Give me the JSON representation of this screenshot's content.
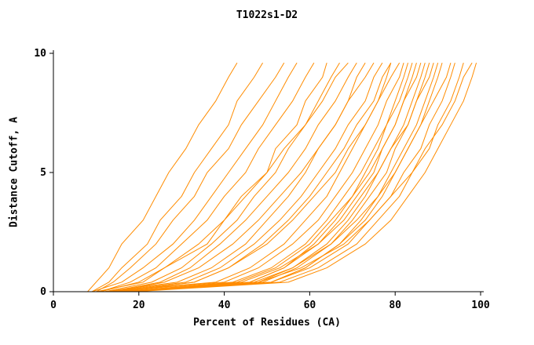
{
  "chart_data": {
    "type": "line",
    "title": "T1022s1-D2",
    "xlabel": "Percent of Residues (CA)",
    "ylabel": "Distance Cutoff, A",
    "xlim": [
      0,
      100
    ],
    "ylim": [
      0,
      10
    ],
    "x_ticks": [
      0,
      20,
      40,
      60,
      80,
      100
    ],
    "y_ticks": [
      0,
      5,
      10
    ],
    "grid": false,
    "legend": "none",
    "series_color": "#ff8c00",
    "axis_color": "#000000",
    "background_color": "#ffffff",
    "y_levels": [
      0,
      0.4,
      1,
      2,
      3,
      4,
      5,
      6,
      7,
      8,
      9,
      9.6
    ],
    "curves": [
      [
        8,
        10,
        13,
        16,
        21,
        24,
        27,
        31,
        34,
        38,
        41,
        43
      ],
      [
        9,
        13,
        16,
        22,
        25,
        30,
        33,
        37,
        41,
        43,
        47,
        49
      ],
      [
        10,
        14,
        18,
        24,
        28,
        33,
        36,
        41,
        44,
        48,
        52,
        54
      ],
      [
        9,
        16,
        21,
        28,
        33,
        37,
        41,
        45,
        49,
        52,
        55,
        57
      ],
      [
        11,
        18,
        24,
        30,
        36,
        40,
        45,
        48,
        52,
        56,
        59,
        61
      ],
      [
        10,
        21,
        26,
        36,
        40,
        44,
        50,
        52,
        57,
        59,
        63,
        64
      ],
      [
        12,
        23,
        30,
        37,
        43,
        47,
        52,
        55,
        59,
        62,
        65,
        67
      ],
      [
        11,
        20,
        26,
        34,
        40,
        45,
        50,
        54,
        59,
        63,
        66,
        69
      ],
      [
        13,
        25,
        32,
        39,
        45,
        50,
        55,
        59,
        62,
        66,
        69,
        71
      ],
      [
        12,
        29,
        37,
        45,
        50,
        55,
        59,
        62,
        66,
        69,
        71,
        73
      ],
      [
        14,
        26,
        34,
        42,
        48,
        53,
        58,
        62,
        66,
        69,
        73,
        75
      ],
      [
        13,
        31,
        39,
        47,
        53,
        58,
        62,
        66,
        69,
        73,
        75,
        77
      ],
      [
        15,
        33,
        41,
        49,
        55,
        60,
        64,
        68,
        71,
        75,
        77,
        79
      ],
      [
        12,
        38,
        46,
        54,
        59,
        64,
        67,
        70,
        73,
        76,
        78,
        79
      ],
      [
        14,
        33,
        41,
        50,
        56,
        61,
        66,
        69,
        73,
        76,
        79,
        81
      ],
      [
        13,
        40,
        48,
        56,
        62,
        66,
        70,
        73,
        76,
        78,
        81,
        82
      ],
      [
        15,
        46,
        54,
        61,
        66,
        70,
        73,
        76,
        78,
        80,
        82,
        83
      ],
      [
        16,
        42,
        51,
        59,
        64,
        68,
        72,
        75,
        78,
        81,
        83,
        84
      ],
      [
        14,
        46,
        54,
        62,
        67,
        71,
        75,
        77,
        80,
        82,
        84,
        85
      ],
      [
        16,
        43,
        52,
        60,
        65,
        70,
        74,
        77,
        80,
        82,
        85,
        86
      ],
      [
        15,
        48,
        56,
        64,
        69,
        73,
        76,
        79,
        82,
        84,
        86,
        87
      ],
      [
        17,
        49,
        57,
        65,
        70,
        74,
        78,
        80,
        83,
        85,
        87,
        88
      ],
      [
        16,
        44,
        53,
        62,
        68,
        72,
        76,
        79,
        83,
        85,
        88,
        89
      ],
      [
        18,
        51,
        59,
        67,
        72,
        76,
        79,
        82,
        85,
        87,
        89,
        90
      ],
      [
        17,
        51,
        59,
        67,
        73,
        77,
        80,
        83,
        86,
        88,
        90,
        91
      ],
      [
        18,
        47,
        56,
        65,
        71,
        76,
        80,
        83,
        86,
        89,
        92,
        93
      ],
      [
        16,
        51,
        60,
        69,
        74,
        79,
        82,
        86,
        88,
        91,
        93,
        94
      ],
      [
        18,
        53,
        62,
        71,
        76,
        81,
        84,
        88,
        90,
        93,
        95,
        96
      ],
      [
        17,
        48,
        58,
        68,
        74,
        79,
        84,
        87,
        91,
        94,
        96,
        98
      ],
      [
        19,
        55,
        64,
        73,
        79,
        83,
        87,
        90,
        93,
        96,
        98,
        99
      ]
    ]
  }
}
